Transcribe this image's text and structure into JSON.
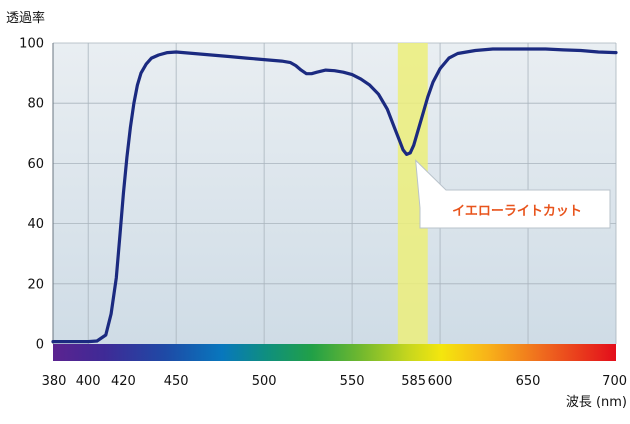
{
  "chart_data": {
    "type": "line",
    "ylabel": "透過率",
    "xlabel": "波長 (nm)",
    "xlim": [
      380,
      700
    ],
    "ylim": [
      0,
      100
    ],
    "grid": true,
    "x_ticks": [
      {
        "value": 380,
        "label": "380"
      },
      {
        "value": 400,
        "label": "400"
      },
      {
        "value": 420,
        "label": "420"
      },
      {
        "value": 450,
        "label": "450"
      },
      {
        "value": 500,
        "label": "500"
      },
      {
        "value": 550,
        "label": "550"
      },
      {
        "value": 585,
        "label": "585"
      },
      {
        "value": 600,
        "label": "600"
      },
      {
        "value": 650,
        "label": "650"
      },
      {
        "value": 700,
        "label": "700"
      }
    ],
    "highlighted_x_ticks": [
      420,
      585
    ],
    "y_ticks": [
      {
        "value": 0,
        "label": "0"
      },
      {
        "value": 20,
        "label": "20"
      },
      {
        "value": 40,
        "label": "40"
      },
      {
        "value": 60,
        "label": "60"
      },
      {
        "value": 80,
        "label": "80"
      },
      {
        "value": 100,
        "label": "100"
      }
    ],
    "highlight_band": {
      "x_start": 576,
      "x_end": 593,
      "color": "#ecee7a"
    },
    "annotation": {
      "text": "イエローライトカット",
      "x": 585,
      "y": 63,
      "color": "#e8541c"
    },
    "series": [
      {
        "color": "#1b2a80",
        "points": [
          [
            380,
            0.8
          ],
          [
            390,
            0.8
          ],
          [
            400,
            0.8
          ],
          [
            405,
            1.0
          ],
          [
            410,
            3
          ],
          [
            413,
            10
          ],
          [
            416,
            22
          ],
          [
            418,
            36
          ],
          [
            420,
            50
          ],
          [
            422,
            62
          ],
          [
            424,
            72
          ],
          [
            426,
            80
          ],
          [
            428,
            86
          ],
          [
            430,
            90
          ],
          [
            433,
            93
          ],
          [
            436,
            95
          ],
          [
            440,
            96
          ],
          [
            445,
            96.8
          ],
          [
            450,
            97
          ],
          [
            460,
            96.5
          ],
          [
            470,
            96
          ],
          [
            480,
            95.5
          ],
          [
            490,
            95
          ],
          [
            500,
            94.5
          ],
          [
            510,
            94
          ],
          [
            515,
            93.5
          ],
          [
            518,
            92.5
          ],
          [
            521,
            91
          ],
          [
            524,
            89.8
          ],
          [
            527,
            89.8
          ],
          [
            530,
            90.3
          ],
          [
            535,
            91
          ],
          [
            540,
            90.8
          ],
          [
            545,
            90.3
          ],
          [
            550,
            89.5
          ],
          [
            555,
            88
          ],
          [
            560,
            86
          ],
          [
            565,
            83
          ],
          [
            570,
            78
          ],
          [
            574,
            72
          ],
          [
            577,
            67.5
          ],
          [
            579,
            64.5
          ],
          [
            581,
            63
          ],
          [
            583,
            63.5
          ],
          [
            585,
            66
          ],
          [
            587,
            70
          ],
          [
            590,
            76
          ],
          [
            593,
            82
          ],
          [
            596,
            87
          ],
          [
            600,
            91.5
          ],
          [
            605,
            95
          ],
          [
            610,
            96.5
          ],
          [
            620,
            97.5
          ],
          [
            630,
            98
          ],
          [
            640,
            98
          ],
          [
            650,
            98
          ],
          [
            660,
            98
          ],
          [
            670,
            97.7
          ],
          [
            680,
            97.5
          ],
          [
            690,
            97
          ],
          [
            700,
            96.8
          ]
        ]
      }
    ],
    "spectrum_bar": true,
    "colors": {
      "line": "#1b2a80",
      "plot_bg_top": "#e9eef2",
      "plot_bg_bottom": "#cfdce6",
      "grid": "#a9b4bd",
      "accent": "#e8541c"
    }
  }
}
